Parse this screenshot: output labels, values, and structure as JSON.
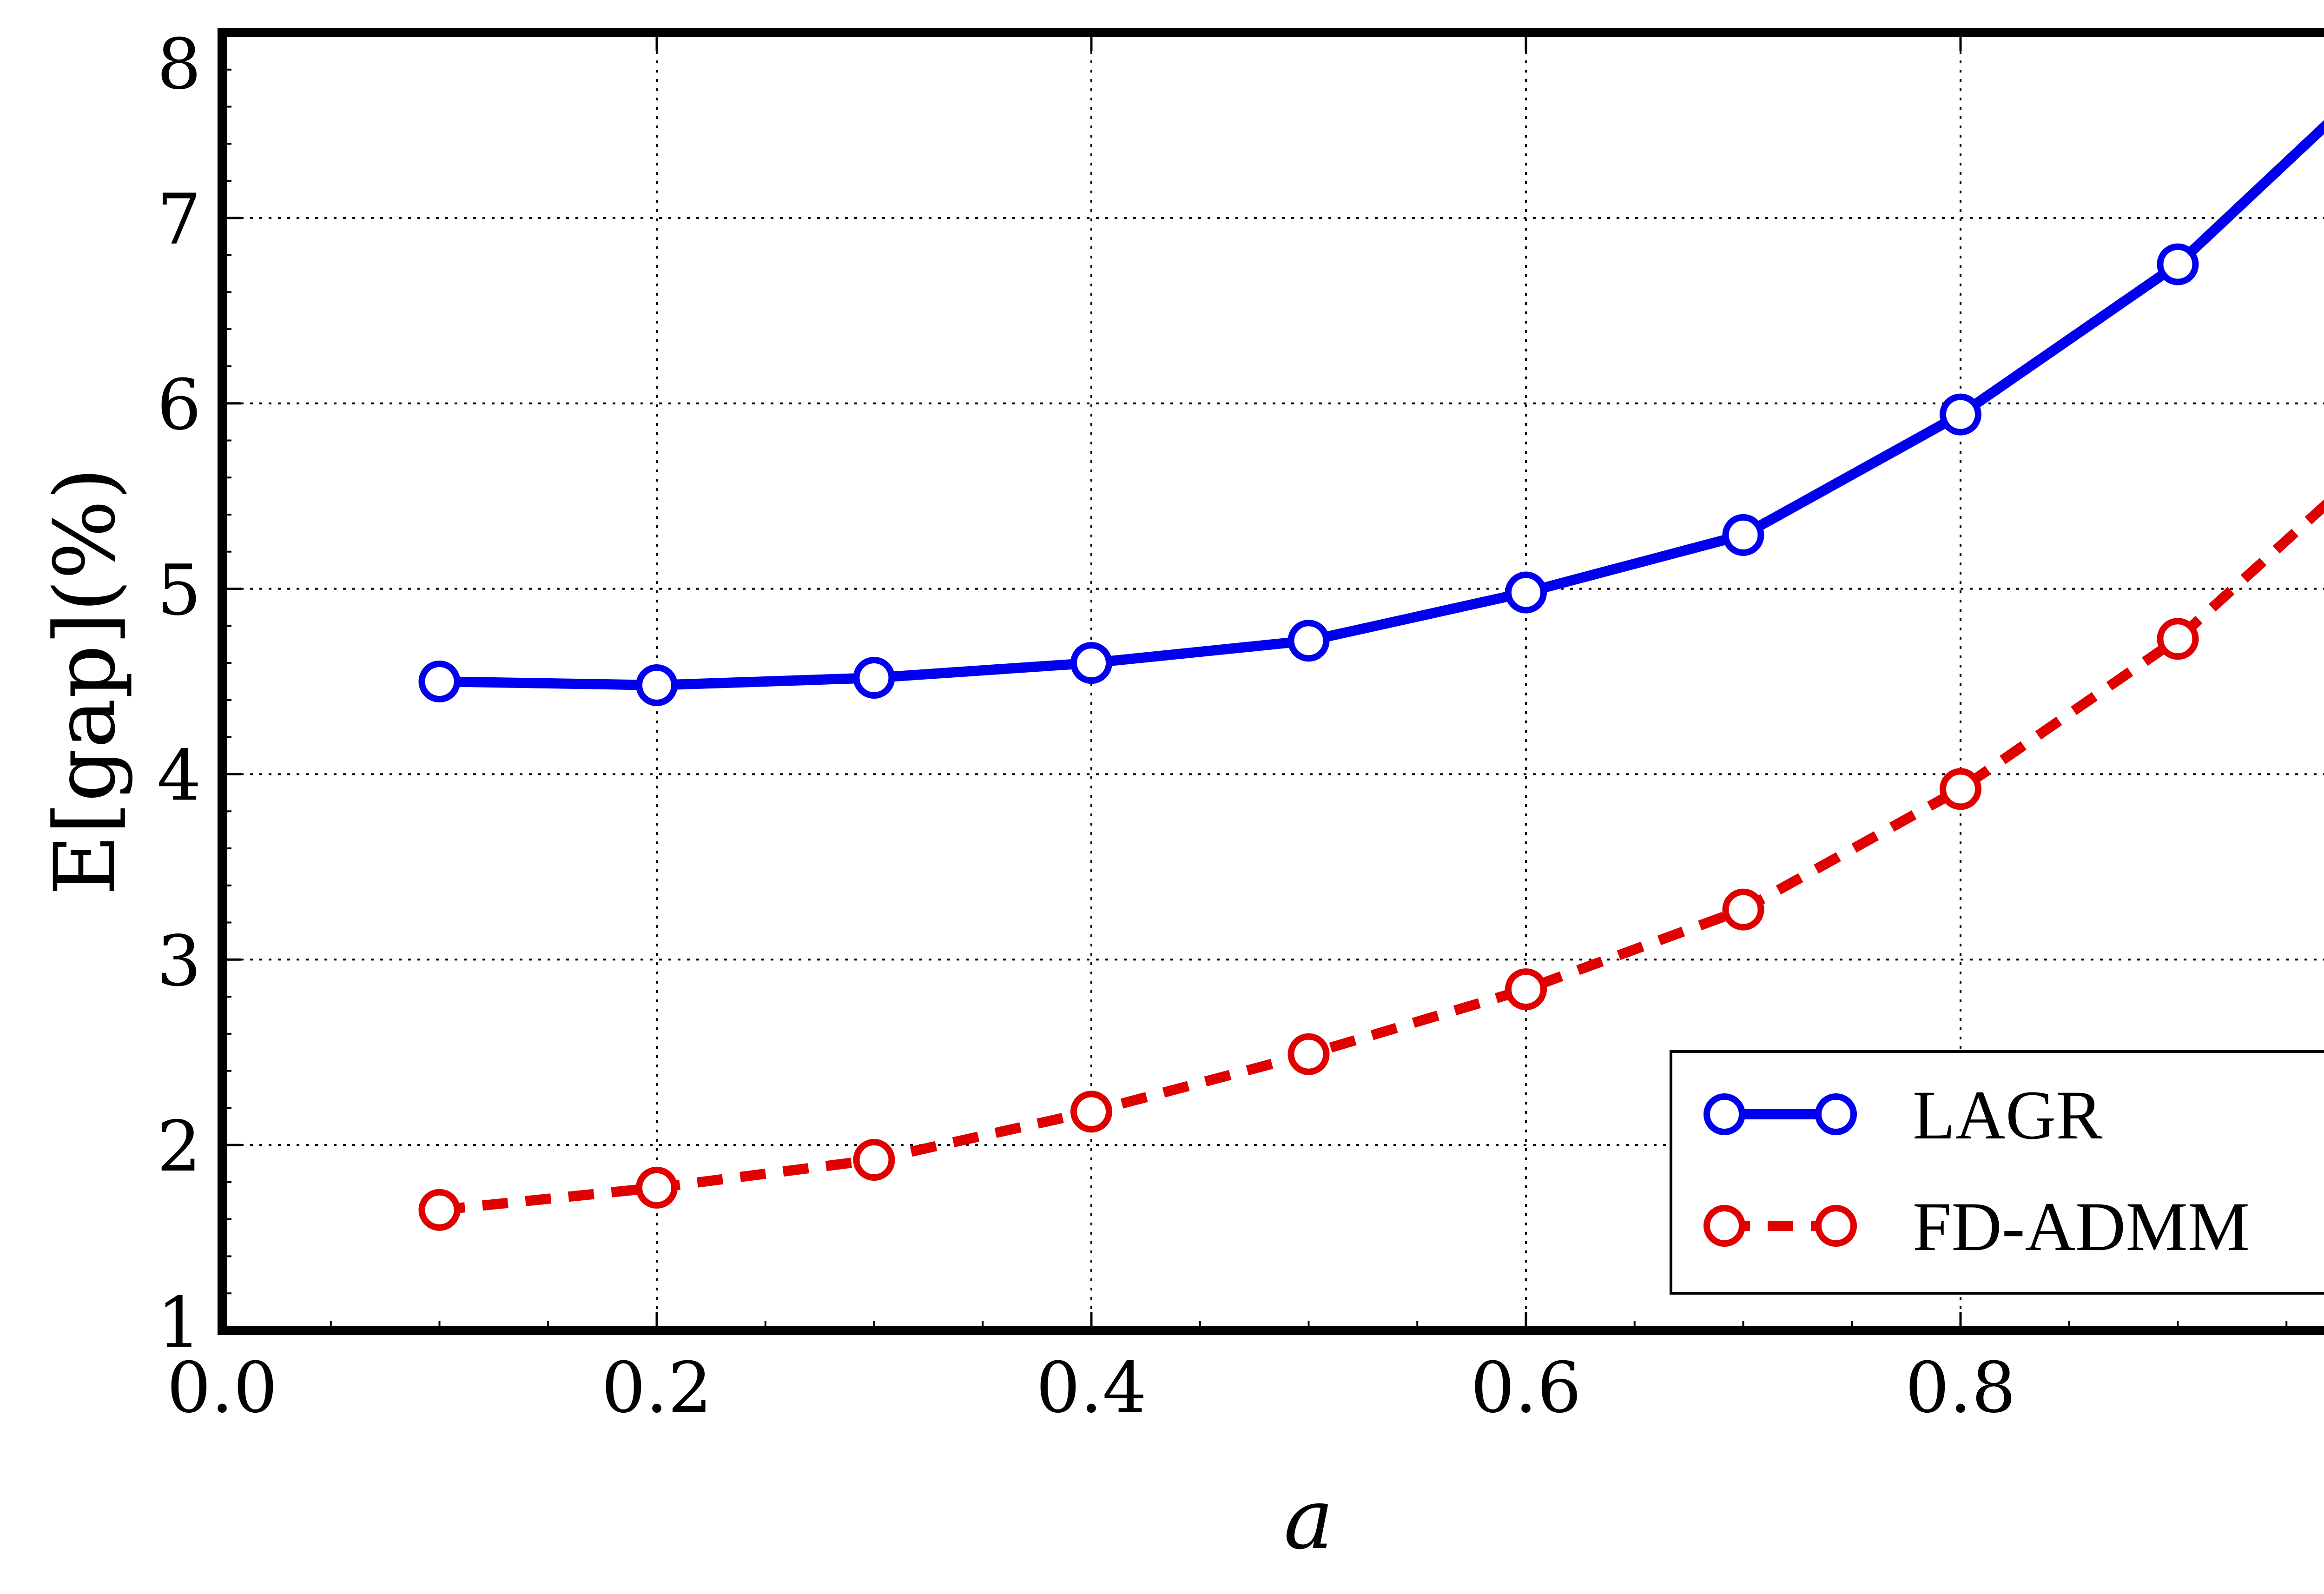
{
  "chart_data": {
    "type": "line",
    "title": "",
    "xlabel": "a",
    "ylabel": "E[gap](%)",
    "xlim": [
      0.0,
      1.0
    ],
    "ylim": [
      1,
      8
    ],
    "xticks": [
      0.0,
      0.2,
      0.4,
      0.6,
      0.8
    ],
    "xtick_labels": [
      "0.0",
      "0.2",
      "0.4",
      "0.6",
      "0.8"
    ],
    "yticks": [
      1,
      2,
      3,
      4,
      5,
      6,
      7,
      8
    ],
    "ytick_labels": [
      "1",
      "2",
      "3",
      "4",
      "5",
      "6",
      "7",
      "8"
    ],
    "grid": true,
    "legend_position": "bottom-right",
    "x": [
      0.1,
      0.2,
      0.3,
      0.4,
      0.5,
      0.6,
      0.7,
      0.8,
      0.9,
      0.98
    ],
    "series": [
      {
        "name": "LAGR",
        "color": "#0000ee",
        "line_style": "solid",
        "marker": "open-circle",
        "values": [
          4.5,
          4.48,
          4.52,
          4.6,
          4.72,
          4.98,
          5.29,
          5.94,
          6.75,
          7.63
        ]
      },
      {
        "name": "FD-ADMM",
        "color": "#e00000",
        "line_style": "dashed",
        "marker": "open-circle",
        "values": [
          1.65,
          1.77,
          1.92,
          2.18,
          2.49,
          2.84,
          3.27,
          3.92,
          4.73,
          5.58
        ]
      }
    ]
  }
}
